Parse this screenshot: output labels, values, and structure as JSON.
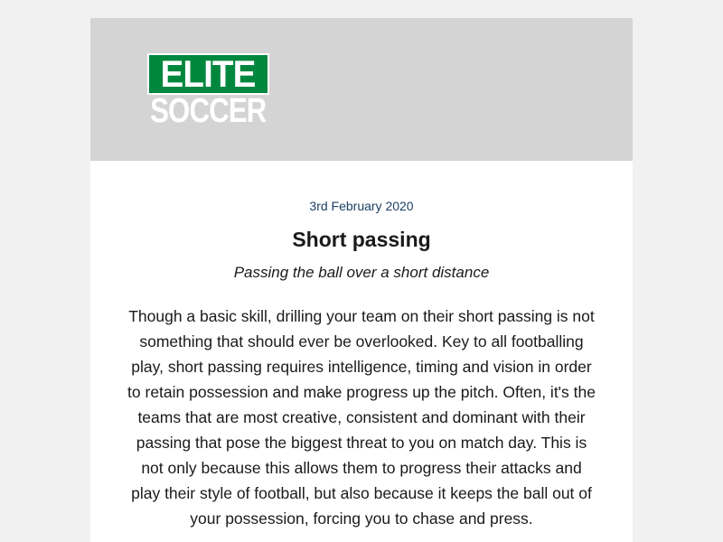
{
  "header": {
    "logo_top": "ELITE",
    "logo_bottom": "SOCCER",
    "brand_color": "#00873e",
    "background_color": "#d4d4d4"
  },
  "article": {
    "date": "3rd February 2020",
    "title": "Short passing",
    "subtitle": "Passing the ball over a short distance",
    "body": "Though a basic skill, drilling your team on their short passing is not something that should ever be overlooked. Key to all footballing play, short passing requires intelligence, timing and vision in order to retain possession and make progress up the pitch. Often, it's the teams that are most creative, consistent and dominant with their passing that pose the biggest threat to you on match day. This is not only because this allows them to progress their attacks and play their style of football, but also because it keeps the ball out of your possession, forcing you to chase and press."
  }
}
